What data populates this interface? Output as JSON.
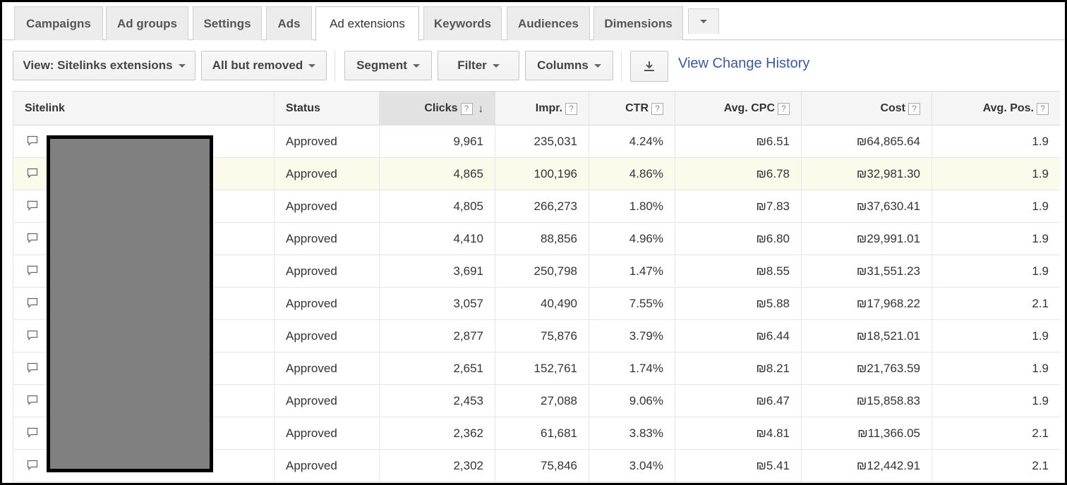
{
  "tabs": [
    {
      "label": "Campaigns",
      "active": false
    },
    {
      "label": "Ad groups",
      "active": false
    },
    {
      "label": "Settings",
      "active": false
    },
    {
      "label": "Ads",
      "active": false
    },
    {
      "label": "Ad extensions",
      "active": true
    },
    {
      "label": "Keywords",
      "active": false
    },
    {
      "label": "Audiences",
      "active": false
    },
    {
      "label": "Dimensions",
      "active": false
    }
  ],
  "toolbar": {
    "view": "View: Sitelinks extensions",
    "filter_status": "All but removed",
    "segment": "Segment",
    "filter": "Filter",
    "columns": "Columns",
    "download_icon": "download-icon",
    "history_link": "View Change History"
  },
  "table": {
    "headers": {
      "sitelink": "Sitelink",
      "status": "Status",
      "clicks": "Clicks",
      "impr": "Impr.",
      "ctr": "CTR",
      "cpc": "Avg. CPC",
      "cost": "Cost",
      "pos": "Avg. Pos."
    },
    "help_glyph": "?",
    "sort_glyph": "↓",
    "rows": [
      {
        "status": "Approved",
        "clicks": "9,961",
        "impr": "235,031",
        "ctr": "4.24%",
        "cpc": "₪6.51",
        "cost": "₪64,865.64",
        "pos": "1.9"
      },
      {
        "status": "Approved",
        "clicks": "4,865",
        "impr": "100,196",
        "ctr": "4.86%",
        "cpc": "₪6.78",
        "cost": "₪32,981.30",
        "pos": "1.9"
      },
      {
        "status": "Approved",
        "clicks": "4,805",
        "impr": "266,273",
        "ctr": "1.80%",
        "cpc": "₪7.83",
        "cost": "₪37,630.41",
        "pos": "1.9"
      },
      {
        "status": "Approved",
        "clicks": "4,410",
        "impr": "88,856",
        "ctr": "4.96%",
        "cpc": "₪6.80",
        "cost": "₪29,991.01",
        "pos": "1.9"
      },
      {
        "status": "Approved",
        "clicks": "3,691",
        "impr": "250,798",
        "ctr": "1.47%",
        "cpc": "₪8.55",
        "cost": "₪31,551.23",
        "pos": "1.9"
      },
      {
        "status": "Approved",
        "clicks": "3,057",
        "impr": "40,490",
        "ctr": "7.55%",
        "cpc": "₪5.88",
        "cost": "₪17,968.22",
        "pos": "2.1"
      },
      {
        "status": "Approved",
        "clicks": "2,877",
        "impr": "75,876",
        "ctr": "3.79%",
        "cpc": "₪6.44",
        "cost": "₪18,521.01",
        "pos": "1.9"
      },
      {
        "status": "Approved",
        "clicks": "2,651",
        "impr": "152,761",
        "ctr": "1.74%",
        "cpc": "₪8.21",
        "cost": "₪21,763.59",
        "pos": "1.9"
      },
      {
        "status": "Approved",
        "clicks": "2,453",
        "impr": "27,088",
        "ctr": "9.06%",
        "cpc": "₪6.47",
        "cost": "₪15,858.83",
        "pos": "1.9"
      },
      {
        "status": "Approved",
        "clicks": "2,362",
        "impr": "61,681",
        "ctr": "3.83%",
        "cpc": "₪4.81",
        "cost": "₪11,366.05",
        "pos": "2.1"
      },
      {
        "status": "Approved",
        "clicks": "2,302",
        "impr": "75,846",
        "ctr": "3.04%",
        "cpc": "₪5.41",
        "cost": "₪12,442.91",
        "pos": "2.1"
      }
    ]
  },
  "colors": {
    "link": "#3c5a9a",
    "highlight_row": "#fafbea",
    "redaction": "#808080"
  }
}
